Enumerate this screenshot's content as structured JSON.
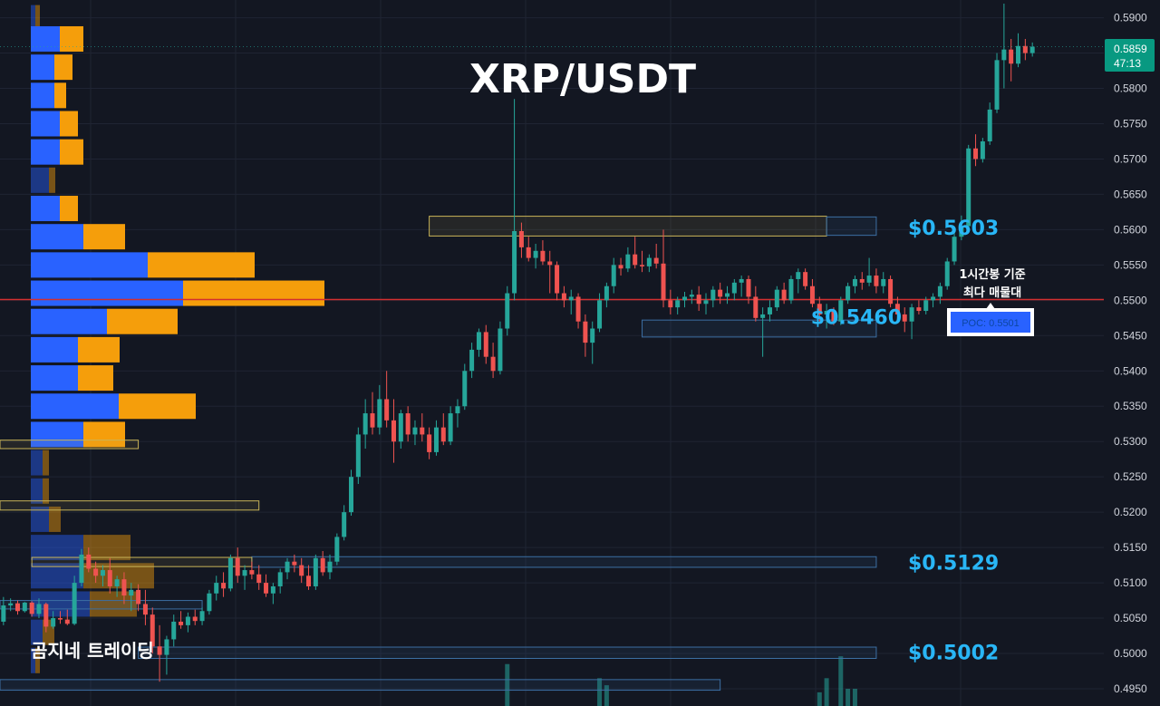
{
  "title": "XRP/USDT",
  "watermark": "곰지네 트레이딩",
  "poc_note_line1": "1시간봉 기준",
  "poc_note_line2": "최다 매물대",
  "poc_label": "POC: 0.5501",
  "colors": {
    "background": "#131722",
    "grid": "#1f2433",
    "bull": "#26a69a",
    "bear": "#ef5350",
    "vp_buy": "#2962ff",
    "vp_sell": "#f59e0b",
    "poc_line": "#d32f2f",
    "level_text": "#29b6f6",
    "zone_yellow": "#c9b458",
    "zone_blue": "#3c6fa3",
    "price_tag": "#089981"
  },
  "chart_data": {
    "type": "candlestick",
    "symbol": "XRP/USDT",
    "timeframe": "1h",
    "y_axis": {
      "min": 0.493,
      "max": 0.592,
      "ticks": [
        "0.4950",
        "0.5000",
        "0.5050",
        "0.5100",
        "0.5150",
        "0.5200",
        "0.5250",
        "0.5300",
        "0.5350",
        "0.5400",
        "0.5450",
        "0.5500",
        "0.5550",
        "0.5600",
        "0.5650",
        "0.5700",
        "0.5750",
        "0.5800",
        "0.5850",
        "0.5900"
      ]
    },
    "current_price": {
      "price": "0.5859",
      "countdown": "47:13",
      "value": 0.5859
    },
    "poc": 0.5501,
    "levels": [
      {
        "label": "$0.5603",
        "value": 0.5603
      },
      {
        "label": "$0.5460",
        "value": 0.546
      },
      {
        "label": "$0.5129",
        "value": 0.5129
      },
      {
        "label": "$0.5002",
        "value": 0.5002
      }
    ],
    "zones": [
      {
        "color": "yellow",
        "top": 0.5619,
        "bottom": 0.5591,
        "start": 61,
        "end": 117
      },
      {
        "color": "blue",
        "top": 0.5618,
        "bottom": 0.5592,
        "start": 117,
        "end": 124
      },
      {
        "color": "blue",
        "top": 0.5472,
        "bottom": 0.5448,
        "start": 91,
        "end": 124
      },
      {
        "color": "blue",
        "top": 0.5137,
        "bottom": 0.5122,
        "start": 36,
        "end": 124
      },
      {
        "color": "blue",
        "top": 0.5009,
        "bottom": 0.4993,
        "start": 20,
        "end": 124
      },
      {
        "color": "yellow",
        "top": 0.5136,
        "bottom": 0.5123,
        "start": 5,
        "end": 36
      },
      {
        "color": "yellow",
        "top": 0.5216,
        "bottom": 0.5203,
        "start": -10,
        "end": 37
      },
      {
        "color": "yellow",
        "top": 0.5302,
        "bottom": 0.529,
        "start": -10,
        "end": 20
      },
      {
        "color": "blue",
        "top": 0.5075,
        "bottom": 0.5063,
        "start": -10,
        "end": 29
      },
      {
        "color": "blue",
        "top": 0.4963,
        "bottom": 0.4948,
        "start": -10,
        "end": 102
      }
    ],
    "volume_profile": [
      {
        "price": 0.59,
        "buy": 5,
        "sell": 5
      },
      {
        "price": 0.587,
        "buy": 32,
        "sell": 26
      },
      {
        "price": 0.583,
        "buy": 26,
        "sell": 20
      },
      {
        "price": 0.579,
        "buy": 26,
        "sell": 13
      },
      {
        "price": 0.575,
        "buy": 32,
        "sell": 20
      },
      {
        "price": 0.571,
        "buy": 32,
        "sell": 26
      },
      {
        "price": 0.567,
        "buy": 20,
        "sell": 7
      },
      {
        "price": 0.563,
        "buy": 32,
        "sell": 20
      },
      {
        "price": 0.559,
        "buy": 58,
        "sell": 46
      },
      {
        "price": 0.555,
        "buy": 129,
        "sell": 118
      },
      {
        "price": 0.551,
        "buy": 168,
        "sell": 156
      },
      {
        "price": 0.547,
        "buy": 84,
        "sell": 78
      },
      {
        "price": 0.543,
        "buy": 52,
        "sell": 46
      },
      {
        "price": 0.539,
        "buy": 52,
        "sell": 39
      },
      {
        "price": 0.535,
        "buy": 97,
        "sell": 85
      },
      {
        "price": 0.531,
        "buy": 58,
        "sell": 46
      },
      {
        "price": 0.527,
        "buy": 13,
        "sell": 7
      },
      {
        "price": 0.523,
        "buy": 13,
        "sell": 7
      },
      {
        "price": 0.519,
        "buy": 20,
        "sell": 13
      },
      {
        "price": 0.515,
        "buy": 58,
        "sell": 52
      },
      {
        "price": 0.511,
        "buy": 58,
        "sell": 78
      },
      {
        "price": 0.507,
        "buy": 65,
        "sell": 52
      },
      {
        "price": 0.503,
        "buy": 13,
        "sell": 13
      },
      {
        "price": 0.499,
        "buy": 5,
        "sell": 5
      }
    ],
    "candles": [
      [
        0.506,
        0.5068,
        0.503,
        0.5045
      ],
      [
        0.5045,
        0.508,
        0.504,
        0.5068
      ],
      [
        0.5068,
        0.5078,
        0.506,
        0.5071
      ],
      [
        0.5071,
        0.5075,
        0.5055,
        0.506
      ],
      [
        0.506,
        0.5073,
        0.5058,
        0.5072
      ],
      [
        0.5072,
        0.5074,
        0.5052,
        0.5056
      ],
      [
        0.5056,
        0.5078,
        0.505,
        0.507
      ],
      [
        0.507,
        0.5072,
        0.503,
        0.5038
      ],
      [
        0.5038,
        0.506,
        0.5035,
        0.505
      ],
      [
        0.505,
        0.506,
        0.5042,
        0.5048
      ],
      [
        0.5048,
        0.5062,
        0.504,
        0.5042
      ],
      [
        0.5042,
        0.511,
        0.504,
        0.51
      ],
      [
        0.51,
        0.5148,
        0.5095,
        0.514
      ],
      [
        0.514,
        0.515,
        0.5115,
        0.512
      ],
      [
        0.512,
        0.513,
        0.51,
        0.511
      ],
      [
        0.511,
        0.5125,
        0.5095,
        0.5118
      ],
      [
        0.5118,
        0.5135,
        0.5085,
        0.5095
      ],
      [
        0.5095,
        0.511,
        0.508,
        0.5105
      ],
      [
        0.5105,
        0.5115,
        0.507,
        0.5082
      ],
      [
        0.5082,
        0.51,
        0.506,
        0.509
      ],
      [
        0.509,
        0.5098,
        0.506,
        0.507
      ],
      [
        0.507,
        0.509,
        0.504,
        0.5055
      ],
      [
        0.5055,
        0.5065,
        0.5,
        0.501
      ],
      [
        0.501,
        0.504,
        0.496,
        0.4998
      ],
      [
        0.4998,
        0.5025,
        0.497,
        0.502
      ],
      [
        0.502,
        0.5055,
        0.501,
        0.5045
      ],
      [
        0.5045,
        0.506,
        0.5035,
        0.504
      ],
      [
        0.504,
        0.5058,
        0.503,
        0.5052
      ],
      [
        0.5052,
        0.5062,
        0.504,
        0.5046
      ],
      [
        0.5046,
        0.5065,
        0.504,
        0.506
      ],
      [
        0.506,
        0.509,
        0.5055,
        0.5085
      ],
      [
        0.5085,
        0.511,
        0.5075,
        0.51
      ],
      [
        0.51,
        0.5115,
        0.508,
        0.5092
      ],
      [
        0.5092,
        0.514,
        0.5088,
        0.5135
      ],
      [
        0.5135,
        0.515,
        0.51,
        0.511
      ],
      [
        0.511,
        0.5125,
        0.509,
        0.5118
      ],
      [
        0.5118,
        0.513,
        0.5105,
        0.5112
      ],
      [
        0.5112,
        0.5125,
        0.509,
        0.51
      ],
      [
        0.51,
        0.5112,
        0.508,
        0.5085
      ],
      [
        0.5085,
        0.51,
        0.507,
        0.5095
      ],
      [
        0.5095,
        0.512,
        0.5085,
        0.5115
      ],
      [
        0.5115,
        0.5135,
        0.5105,
        0.513
      ],
      [
        0.513,
        0.514,
        0.5115,
        0.5125
      ],
      [
        0.5125,
        0.5135,
        0.51,
        0.511
      ],
      [
        0.511,
        0.5125,
        0.509,
        0.5095
      ],
      [
        0.5095,
        0.514,
        0.509,
        0.5135
      ],
      [
        0.5135,
        0.5145,
        0.511,
        0.5115
      ],
      [
        0.5115,
        0.514,
        0.5105,
        0.513
      ],
      [
        0.513,
        0.517,
        0.5125,
        0.5165
      ],
      [
        0.5165,
        0.521,
        0.516,
        0.52
      ],
      [
        0.52,
        0.526,
        0.5195,
        0.525
      ],
      [
        0.525,
        0.532,
        0.524,
        0.531
      ],
      [
        0.531,
        0.536,
        0.529,
        0.534
      ],
      [
        0.534,
        0.537,
        0.531,
        0.532
      ],
      [
        0.532,
        0.538,
        0.531,
        0.536
      ],
      [
        0.536,
        0.54,
        0.532,
        0.533
      ],
      [
        0.533,
        0.536,
        0.527,
        0.53
      ],
      [
        0.53,
        0.5345,
        0.529,
        0.534
      ],
      [
        0.534,
        0.535,
        0.53,
        0.531
      ],
      [
        0.531,
        0.533,
        0.5295,
        0.532
      ],
      [
        0.532,
        0.534,
        0.53,
        0.531
      ],
      [
        0.531,
        0.532,
        0.5275,
        0.5285
      ],
      [
        0.5285,
        0.533,
        0.528,
        0.532
      ],
      [
        0.532,
        0.534,
        0.5295,
        0.53
      ],
      [
        0.53,
        0.535,
        0.5295,
        0.534
      ],
      [
        0.534,
        0.536,
        0.532,
        0.535
      ],
      [
        0.535,
        0.541,
        0.5345,
        0.54
      ],
      [
        0.54,
        0.544,
        0.539,
        0.543
      ],
      [
        0.543,
        0.546,
        0.542,
        0.5455
      ],
      [
        0.5455,
        0.5465,
        0.541,
        0.542
      ],
      [
        0.542,
        0.544,
        0.539,
        0.54
      ],
      [
        0.54,
        0.547,
        0.5395,
        0.546
      ],
      [
        0.546,
        0.552,
        0.545,
        0.551
      ],
      [
        0.551,
        0.5785,
        0.55,
        0.5598
      ],
      [
        0.5598,
        0.561,
        0.556,
        0.5575
      ],
      [
        0.5575,
        0.559,
        0.5555,
        0.556
      ],
      [
        0.556,
        0.558,
        0.5545,
        0.557
      ],
      [
        0.557,
        0.5585,
        0.555,
        0.5555
      ],
      [
        0.5555,
        0.557,
        0.551,
        0.555
      ],
      [
        0.555,
        0.5555,
        0.55,
        0.551
      ],
      [
        0.551,
        0.552,
        0.549,
        0.55
      ],
      [
        0.55,
        0.5515,
        0.548,
        0.5505
      ],
      [
        0.5505,
        0.551,
        0.546,
        0.547
      ],
      [
        0.547,
        0.548,
        0.542,
        0.544
      ],
      [
        0.544,
        0.547,
        0.541,
        0.546
      ],
      [
        0.546,
        0.551,
        0.5455,
        0.55
      ],
      [
        0.55,
        0.5525,
        0.549,
        0.552
      ],
      [
        0.552,
        0.556,
        0.551,
        0.555
      ],
      [
        0.555,
        0.556,
        0.5535,
        0.5545
      ],
      [
        0.5545,
        0.5575,
        0.554,
        0.5565
      ],
      [
        0.5565,
        0.559,
        0.5545,
        0.555
      ],
      [
        0.555,
        0.557,
        0.554,
        0.5548
      ],
      [
        0.5548,
        0.5565,
        0.554,
        0.556
      ],
      [
        0.556,
        0.558,
        0.5545,
        0.5552
      ],
      [
        0.5552,
        0.56,
        0.549,
        0.55
      ],
      [
        0.55,
        0.5515,
        0.548,
        0.549
      ],
      [
        0.549,
        0.5505,
        0.548,
        0.55
      ],
      [
        0.55,
        0.5512,
        0.549,
        0.5505
      ],
      [
        0.5505,
        0.5515,
        0.5495,
        0.5508
      ],
      [
        0.5508,
        0.552,
        0.5485,
        0.5495
      ],
      [
        0.5495,
        0.551,
        0.548,
        0.55
      ],
      [
        0.55,
        0.552,
        0.549,
        0.5515
      ],
      [
        0.5515,
        0.5525,
        0.5495,
        0.5505
      ],
      [
        0.5505,
        0.552,
        0.5495,
        0.551
      ],
      [
        0.551,
        0.553,
        0.55,
        0.5525
      ],
      [
        0.5525,
        0.5535,
        0.5505,
        0.553
      ],
      [
        0.553,
        0.5535,
        0.5495,
        0.5505
      ],
      [
        0.5505,
        0.552,
        0.547,
        0.5475
      ],
      [
        0.5475,
        0.549,
        0.542,
        0.548
      ],
      [
        0.548,
        0.55,
        0.547,
        0.549
      ],
      [
        0.549,
        0.552,
        0.5485,
        0.5515
      ],
      [
        0.5515,
        0.5525,
        0.5495,
        0.55
      ],
      [
        0.55,
        0.5535,
        0.5495,
        0.553
      ],
      [
        0.553,
        0.5545,
        0.551,
        0.554
      ],
      [
        0.554,
        0.5545,
        0.5515,
        0.552
      ],
      [
        0.552,
        0.553,
        0.549,
        0.5495
      ],
      [
        0.5495,
        0.5505,
        0.547,
        0.548
      ],
      [
        0.548,
        0.5495,
        0.546,
        0.5485
      ],
      [
        0.5485,
        0.549,
        0.5465,
        0.547
      ],
      [
        0.547,
        0.5505,
        0.5465,
        0.55
      ],
      [
        0.55,
        0.5525,
        0.5495,
        0.552
      ],
      [
        0.552,
        0.5535,
        0.551,
        0.553
      ],
      [
        0.553,
        0.554,
        0.5515,
        0.5525
      ],
      [
        0.5525,
        0.556,
        0.552,
        0.5535
      ],
      [
        0.5535,
        0.5545,
        0.551,
        0.552
      ],
      [
        0.552,
        0.554,
        0.551,
        0.553
      ],
      [
        0.553,
        0.5535,
        0.549,
        0.5495
      ],
      [
        0.5495,
        0.5505,
        0.547,
        0.548
      ],
      [
        0.548,
        0.549,
        0.5455,
        0.547
      ],
      [
        0.547,
        0.5495,
        0.5445,
        0.549
      ],
      [
        0.549,
        0.55,
        0.548,
        0.5485
      ],
      [
        0.5485,
        0.5505,
        0.548,
        0.55
      ],
      [
        0.55,
        0.551,
        0.549,
        0.5505
      ],
      [
        0.5505,
        0.5525,
        0.5495,
        0.552
      ],
      [
        0.552,
        0.556,
        0.5515,
        0.5555
      ],
      [
        0.5555,
        0.56,
        0.555,
        0.559
      ],
      [
        0.559,
        0.562,
        0.5585,
        0.5605
      ],
      [
        0.5605,
        0.572,
        0.56,
        0.5715
      ],
      [
        0.5715,
        0.5735,
        0.569,
        0.57
      ],
      [
        0.57,
        0.573,
        0.5695,
        0.5725
      ],
      [
        0.5725,
        0.578,
        0.572,
        0.577
      ],
      [
        0.577,
        0.585,
        0.5765,
        0.584
      ],
      [
        0.584,
        0.592,
        0.58,
        0.5855
      ],
      [
        0.5855,
        0.587,
        0.581,
        0.5835
      ],
      [
        0.5835,
        0.5878,
        0.583,
        0.586
      ],
      [
        0.586,
        0.587,
        0.584,
        0.585
      ],
      [
        0.585,
        0.5865,
        0.5845,
        0.5859
      ]
    ],
    "volumes": [
      [
        72,
        0.4985
      ],
      [
        85,
        0.4965
      ],
      [
        86,
        0.4955
      ],
      [
        116,
        0.4945
      ],
      [
        117,
        0.4965
      ],
      [
        119,
        0.4996
      ],
      [
        120,
        0.495
      ],
      [
        121,
        0.495
      ]
    ]
  }
}
